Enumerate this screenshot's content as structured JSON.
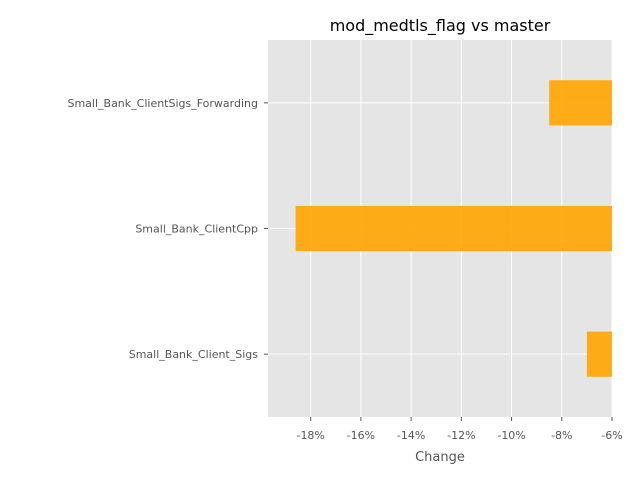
{
  "chart_data": {
    "type": "bar",
    "orientation": "horizontal",
    "title": "mod_medtls_flag vs master",
    "xlabel": "Change",
    "ylabel": "",
    "categories": [
      "Small_Bank_ClientSigs_Forwarding",
      "Small_Bank_ClientCpp",
      "Small_Bank_Client_Sigs"
    ],
    "values": [
      -8.5,
      -18.6,
      -7.0
    ],
    "xlim": [
      -19.7,
      -6.0
    ],
    "xticks": [
      -18,
      -16,
      -14,
      -12,
      -10,
      -8,
      -6
    ],
    "xtick_labels": [
      "-18%",
      "-16%",
      "-14%",
      "-12%",
      "-10%",
      "-8%",
      "-6%"
    ],
    "grid": true,
    "bar_color": "#FFA500",
    "background_color": "#E5E5E5",
    "grid_color": "#FFFFFF"
  }
}
